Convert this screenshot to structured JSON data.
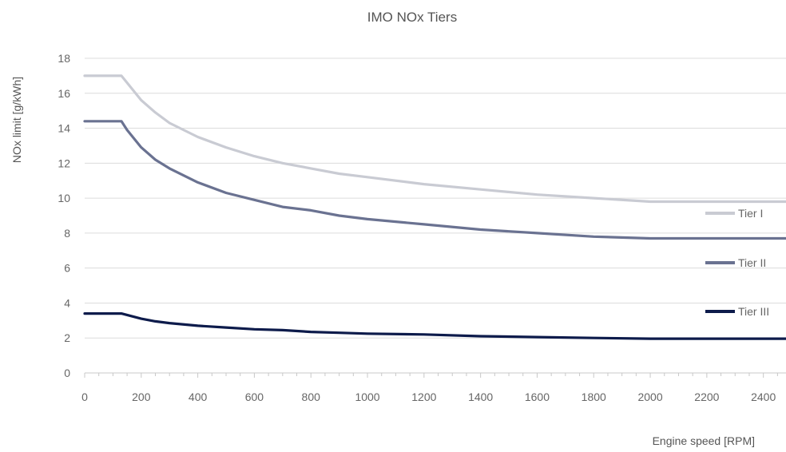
{
  "chart_data": {
    "type": "line",
    "title": "IMO NOx Tiers",
    "xlabel": "Engine speed [RPM]",
    "ylabel": "NOx limit [g/kWh]",
    "xlim": [
      0,
      2480
    ],
    "ylim": [
      0,
      18
    ],
    "x_ticks": [
      0,
      200,
      400,
      600,
      800,
      1000,
      1200,
      1400,
      1600,
      1800,
      2000,
      2200,
      2400
    ],
    "y_ticks": [
      0,
      2,
      4,
      6,
      8,
      10,
      12,
      14,
      16,
      18
    ],
    "grid": "horizontal",
    "legend": "right",
    "series": [
      {
        "name": "Tier I",
        "color": "#c9cbd3",
        "points": [
          [
            0,
            17
          ],
          [
            130,
            17
          ],
          [
            150,
            16.6
          ],
          [
            200,
            15.6
          ],
          [
            250,
            14.9
          ],
          [
            300,
            14.3
          ],
          [
            400,
            13.5
          ],
          [
            500,
            12.9
          ],
          [
            600,
            12.4
          ],
          [
            700,
            12.0
          ],
          [
            800,
            11.7
          ],
          [
            900,
            11.4
          ],
          [
            1000,
            11.2
          ],
          [
            1200,
            10.8
          ],
          [
            1400,
            10.5
          ],
          [
            1600,
            10.2
          ],
          [
            1800,
            10.0
          ],
          [
            2000,
            9.8
          ],
          [
            2480,
            9.8
          ]
        ]
      },
      {
        "name": "Tier II",
        "color": "#6a7291",
        "points": [
          [
            0,
            14.4
          ],
          [
            130,
            14.4
          ],
          [
            150,
            13.9
          ],
          [
            200,
            12.9
          ],
          [
            250,
            12.2
          ],
          [
            300,
            11.7
          ],
          [
            400,
            10.9
          ],
          [
            500,
            10.3
          ],
          [
            600,
            9.9
          ],
          [
            700,
            9.5
          ],
          [
            800,
            9.3
          ],
          [
            900,
            9.0
          ],
          [
            1000,
            8.8
          ],
          [
            1200,
            8.5
          ],
          [
            1400,
            8.2
          ],
          [
            1600,
            8.0
          ],
          [
            1800,
            7.8
          ],
          [
            2000,
            7.7
          ],
          [
            2480,
            7.7
          ]
        ]
      },
      {
        "name": "Tier III",
        "color": "#0d1b4b",
        "points": [
          [
            0,
            3.4
          ],
          [
            130,
            3.4
          ],
          [
            200,
            3.1
          ],
          [
            250,
            2.95
          ],
          [
            300,
            2.85
          ],
          [
            400,
            2.7
          ],
          [
            500,
            2.6
          ],
          [
            600,
            2.5
          ],
          [
            700,
            2.45
          ],
          [
            800,
            2.35
          ],
          [
            900,
            2.3
          ],
          [
            1000,
            2.25
          ],
          [
            1200,
            2.2
          ],
          [
            1400,
            2.1
          ],
          [
            1600,
            2.05
          ],
          [
            1800,
            2.0
          ],
          [
            2000,
            1.96
          ],
          [
            2480,
            1.96
          ]
        ]
      }
    ]
  }
}
